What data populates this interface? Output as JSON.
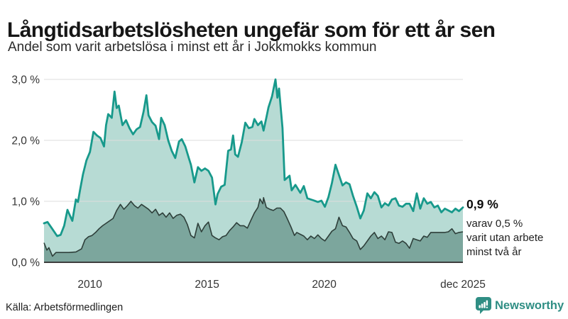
{
  "header": {
    "title": "Långtidsarbetslösheten ungefär som för ett år sen",
    "subtitle": "Andel som varit arbetslösa i minst ett år i Jokkmokks kommun"
  },
  "annotation": {
    "value": "0,9 %",
    "lines": [
      "varav 0,5 %",
      "varit utan arbete",
      "minst två år"
    ]
  },
  "footer": {
    "source": "Källa: Arbetsförmedlingen",
    "brand": "Newsworthy"
  },
  "colors": {
    "teal_line": "#17998b",
    "light_fill": "#b7dbd4",
    "dark_fill": "#7ca69d",
    "dark_line": "#2e3f3a",
    "baseline": "#3d3d3d",
    "gridline": "#dcdcdc",
    "brand_teal": "#2f8e84"
  },
  "chart_data": {
    "type": "area",
    "title": "Långtidsarbetslösheten ungefär som för ett år sen",
    "subtitle": "Andel som varit arbetslösa i minst ett år i Jokkmokks kommun",
    "unit": "%",
    "grid": "horizontal",
    "legend_position": "end-of-line-annotation",
    "x_axis": {
      "range": [
        2008.04,
        2025.92
      ],
      "ticks": [
        {
          "t": 2010,
          "label": "2010"
        },
        {
          "t": 2015,
          "label": "2015"
        },
        {
          "t": 2020,
          "label": "2020"
        },
        {
          "t": 2025.92,
          "label": "dec 2025"
        }
      ]
    },
    "y_axis": {
      "range": [
        0,
        3
      ],
      "ticks": [
        {
          "v": 0,
          "label": "0,0 %"
        },
        {
          "v": 1,
          "label": "1,0 %"
        },
        {
          "v": 2,
          "label": "2,0 %"
        },
        {
          "v": 3,
          "label": "3,0 %"
        }
      ]
    },
    "series": [
      {
        "name": "Arbetslösa minst ett år",
        "end_value_label": "0,9 %",
        "line_color": "#17998b",
        "fill_color": "#b7dbd4",
        "line_width": 2.8,
        "points": [
          [
            2008.04,
            0.64
          ],
          [
            2008.19,
            0.66
          ],
          [
            2008.37,
            0.56
          ],
          [
            2008.6,
            0.43
          ],
          [
            2008.75,
            0.45
          ],
          [
            2008.9,
            0.6
          ],
          [
            2009.04,
            0.86
          ],
          [
            2009.13,
            0.78
          ],
          [
            2009.25,
            0.68
          ],
          [
            2009.4,
            1.03
          ],
          [
            2009.49,
            0.99
          ],
          [
            2009.58,
            1.19
          ],
          [
            2009.7,
            1.44
          ],
          [
            2009.85,
            1.67
          ],
          [
            2010.0,
            1.81
          ],
          [
            2010.15,
            2.14
          ],
          [
            2010.3,
            2.08
          ],
          [
            2010.45,
            2.04
          ],
          [
            2010.6,
            1.9
          ],
          [
            2010.69,
            2.25
          ],
          [
            2010.78,
            2.43
          ],
          [
            2010.93,
            2.37
          ],
          [
            2011.05,
            2.8
          ],
          [
            2011.14,
            2.53
          ],
          [
            2011.23,
            2.57
          ],
          [
            2011.39,
            2.25
          ],
          [
            2011.54,
            2.33
          ],
          [
            2011.69,
            2.2
          ],
          [
            2011.84,
            2.1
          ],
          [
            2011.99,
            2.18
          ],
          [
            2012.14,
            2.22
          ],
          [
            2012.29,
            2.47
          ],
          [
            2012.41,
            2.74
          ],
          [
            2012.5,
            2.41
          ],
          [
            2012.65,
            2.3
          ],
          [
            2012.8,
            2.24
          ],
          [
            2012.95,
            2.02
          ],
          [
            2013.04,
            2.37
          ],
          [
            2013.19,
            2.25
          ],
          [
            2013.34,
            2.0
          ],
          [
            2013.49,
            1.83
          ],
          [
            2013.64,
            1.71
          ],
          [
            2013.8,
            1.98
          ],
          [
            2013.92,
            2.02
          ],
          [
            2014.07,
            1.9
          ],
          [
            2014.22,
            1.71
          ],
          [
            2014.31,
            1.6
          ],
          [
            2014.46,
            1.31
          ],
          [
            2014.61,
            1.56
          ],
          [
            2014.76,
            1.5
          ],
          [
            2014.91,
            1.54
          ],
          [
            2015.06,
            1.5
          ],
          [
            2015.21,
            1.39
          ],
          [
            2015.36,
            0.95
          ],
          [
            2015.45,
            1.12
          ],
          [
            2015.6,
            1.24
          ],
          [
            2015.75,
            1.27
          ],
          [
            2015.9,
            1.83
          ],
          [
            2016.02,
            1.85
          ],
          [
            2016.11,
            2.08
          ],
          [
            2016.2,
            1.77
          ],
          [
            2016.32,
            1.73
          ],
          [
            2016.48,
            1.97
          ],
          [
            2016.63,
            2.29
          ],
          [
            2016.78,
            2.2
          ],
          [
            2016.93,
            2.22
          ],
          [
            2017.02,
            2.35
          ],
          [
            2017.17,
            2.25
          ],
          [
            2017.32,
            2.31
          ],
          [
            2017.41,
            2.16
          ],
          [
            2017.53,
            2.37
          ],
          [
            2017.62,
            2.54
          ],
          [
            2017.77,
            2.72
          ],
          [
            2017.92,
            3.0
          ],
          [
            2018.0,
            2.7
          ],
          [
            2018.07,
            2.85
          ],
          [
            2018.22,
            2.2
          ],
          [
            2018.31,
            1.35
          ],
          [
            2018.52,
            1.42
          ],
          [
            2018.61,
            1.18
          ],
          [
            2018.77,
            1.27
          ],
          [
            2018.98,
            1.14
          ],
          [
            2019.13,
            1.25
          ],
          [
            2019.28,
            1.05
          ],
          [
            2019.43,
            1.03
          ],
          [
            2019.58,
            1.01
          ],
          [
            2019.73,
            0.99
          ],
          [
            2019.88,
            1.01
          ],
          [
            2020.03,
            0.91
          ],
          [
            2020.18,
            1.07
          ],
          [
            2020.33,
            1.3
          ],
          [
            2020.48,
            1.6
          ],
          [
            2020.78,
            1.26
          ],
          [
            2020.93,
            1.31
          ],
          [
            2021.08,
            1.28
          ],
          [
            2021.23,
            1.09
          ],
          [
            2021.39,
            0.91
          ],
          [
            2021.54,
            0.72
          ],
          [
            2021.69,
            0.85
          ],
          [
            2021.84,
            1.13
          ],
          [
            2021.99,
            1.05
          ],
          [
            2022.14,
            1.15
          ],
          [
            2022.29,
            1.09
          ],
          [
            2022.44,
            0.9
          ],
          [
            2022.59,
            0.97
          ],
          [
            2022.74,
            0.93
          ],
          [
            2022.89,
            1.03
          ],
          [
            2023.04,
            1.05
          ],
          [
            2023.19,
            0.93
          ],
          [
            2023.34,
            0.91
          ],
          [
            2023.49,
            0.96
          ],
          [
            2023.64,
            0.96
          ],
          [
            2023.8,
            0.84
          ],
          [
            2023.95,
            1.13
          ],
          [
            2024.1,
            0.88
          ],
          [
            2024.25,
            1.05
          ],
          [
            2024.4,
            0.96
          ],
          [
            2024.55,
            0.99
          ],
          [
            2024.7,
            0.9
          ],
          [
            2024.85,
            0.93
          ],
          [
            2025.0,
            0.82
          ],
          [
            2025.15,
            0.88
          ],
          [
            2025.3,
            0.85
          ],
          [
            2025.45,
            0.82
          ],
          [
            2025.6,
            0.88
          ],
          [
            2025.75,
            0.84
          ],
          [
            2025.92,
            0.9
          ]
        ]
      },
      {
        "name": "Arbetslösa minst två år",
        "end_value_label": "0,5 %",
        "line_color": "#2e3f3a",
        "fill_color": "#7ca69d",
        "line_width": 1.6,
        "points": [
          [
            2008.04,
            0.32
          ],
          [
            2008.16,
            0.2
          ],
          [
            2008.25,
            0.24
          ],
          [
            2008.4,
            0.1
          ],
          [
            2008.55,
            0.16
          ],
          [
            2008.8,
            0.16
          ],
          [
            2009.1,
            0.16
          ],
          [
            2009.4,
            0.17
          ],
          [
            2009.64,
            0.22
          ],
          [
            2009.79,
            0.37
          ],
          [
            2009.94,
            0.42
          ],
          [
            2010.09,
            0.44
          ],
          [
            2010.24,
            0.49
          ],
          [
            2010.39,
            0.55
          ],
          [
            2010.54,
            0.6
          ],
          [
            2010.69,
            0.64
          ],
          [
            2010.84,
            0.68
          ],
          [
            2010.99,
            0.72
          ],
          [
            2011.14,
            0.85
          ],
          [
            2011.3,
            0.95
          ],
          [
            2011.45,
            0.87
          ],
          [
            2011.6,
            0.93
          ],
          [
            2011.75,
            1.0
          ],
          [
            2011.9,
            0.93
          ],
          [
            2012.05,
            0.89
          ],
          [
            2012.2,
            0.95
          ],
          [
            2012.35,
            0.91
          ],
          [
            2012.5,
            0.87
          ],
          [
            2012.65,
            0.81
          ],
          [
            2012.8,
            0.87
          ],
          [
            2012.95,
            0.77
          ],
          [
            2013.1,
            0.81
          ],
          [
            2013.25,
            0.74
          ],
          [
            2013.4,
            0.81
          ],
          [
            2013.55,
            0.72
          ],
          [
            2013.7,
            0.77
          ],
          [
            2013.86,
            0.79
          ],
          [
            2014.01,
            0.74
          ],
          [
            2014.16,
            0.62
          ],
          [
            2014.31,
            0.44
          ],
          [
            2014.46,
            0.4
          ],
          [
            2014.61,
            0.64
          ],
          [
            2014.76,
            0.5
          ],
          [
            2014.91,
            0.6
          ],
          [
            2015.06,
            0.66
          ],
          [
            2015.21,
            0.44
          ],
          [
            2015.36,
            0.4
          ],
          [
            2015.51,
            0.37
          ],
          [
            2015.66,
            0.42
          ],
          [
            2015.81,
            0.44
          ],
          [
            2015.96,
            0.52
          ],
          [
            2016.11,
            0.58
          ],
          [
            2016.26,
            0.65
          ],
          [
            2016.41,
            0.6
          ],
          [
            2016.57,
            0.6
          ],
          [
            2016.72,
            0.56
          ],
          [
            2016.87,
            0.69
          ],
          [
            2017.02,
            0.81
          ],
          [
            2017.17,
            0.9
          ],
          [
            2017.26,
            1.04
          ],
          [
            2017.38,
            0.96
          ],
          [
            2017.41,
            1.06
          ],
          [
            2017.53,
            0.9
          ],
          [
            2017.68,
            0.87
          ],
          [
            2017.83,
            0.85
          ],
          [
            2017.98,
            0.89
          ],
          [
            2018.13,
            0.89
          ],
          [
            2018.28,
            0.83
          ],
          [
            2018.43,
            0.71
          ],
          [
            2018.58,
            0.58
          ],
          [
            2018.73,
            0.44
          ],
          [
            2018.83,
            0.49
          ],
          [
            2019.13,
            0.43
          ],
          [
            2019.28,
            0.37
          ],
          [
            2019.43,
            0.43
          ],
          [
            2019.58,
            0.39
          ],
          [
            2019.73,
            0.45
          ],
          [
            2019.88,
            0.39
          ],
          [
            2020.03,
            0.35
          ],
          [
            2020.18,
            0.43
          ],
          [
            2020.33,
            0.51
          ],
          [
            2020.48,
            0.55
          ],
          [
            2020.63,
            0.74
          ],
          [
            2020.78,
            0.6
          ],
          [
            2020.93,
            0.58
          ],
          [
            2021.08,
            0.49
          ],
          [
            2021.23,
            0.39
          ],
          [
            2021.39,
            0.35
          ],
          [
            2021.54,
            0.21
          ],
          [
            2021.69,
            0.27
          ],
          [
            2021.84,
            0.35
          ],
          [
            2021.99,
            0.43
          ],
          [
            2022.14,
            0.49
          ],
          [
            2022.29,
            0.39
          ],
          [
            2022.44,
            0.43
          ],
          [
            2022.59,
            0.37
          ],
          [
            2022.74,
            0.5
          ],
          [
            2022.89,
            0.49
          ],
          [
            2023.04,
            0.33
          ],
          [
            2023.19,
            0.31
          ],
          [
            2023.34,
            0.35
          ],
          [
            2023.49,
            0.31
          ],
          [
            2023.64,
            0.23
          ],
          [
            2023.8,
            0.39
          ],
          [
            2023.95,
            0.37
          ],
          [
            2024.1,
            0.35
          ],
          [
            2024.25,
            0.43
          ],
          [
            2024.4,
            0.41
          ],
          [
            2024.55,
            0.49
          ],
          [
            2024.7,
            0.49
          ],
          [
            2024.85,
            0.49
          ],
          [
            2025.0,
            0.49
          ],
          [
            2025.15,
            0.49
          ],
          [
            2025.3,
            0.5
          ],
          [
            2025.45,
            0.55
          ],
          [
            2025.6,
            0.47
          ],
          [
            2025.75,
            0.49
          ],
          [
            2025.92,
            0.5
          ]
        ]
      }
    ]
  }
}
